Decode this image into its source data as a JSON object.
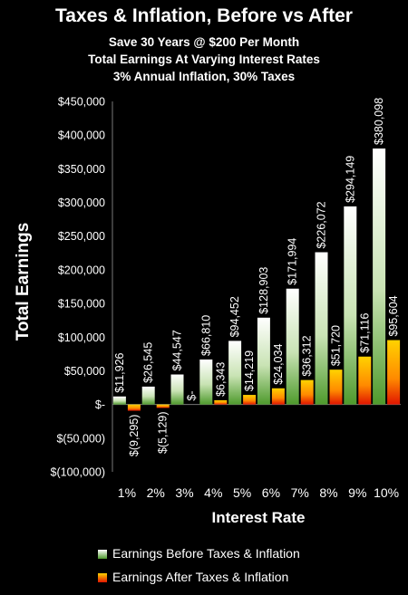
{
  "header": {
    "title": "Taxes & Inflation, Before vs After",
    "subtitle_lines": [
      "Save 30 Years @ $200 Per Month",
      "Total Earnings At Varying Interest Rates",
      "3% Annual Inflation, 30% Taxes"
    ]
  },
  "chart_data": {
    "type": "bar",
    "title": "Taxes & Inflation, Before vs After",
    "xlabel": "Interest Rate",
    "ylabel": "Total Earnings",
    "categories": [
      "1%",
      "2%",
      "3%",
      "4%",
      "5%",
      "6%",
      "7%",
      "8%",
      "9%",
      "10%"
    ],
    "ylim": [
      -100000,
      450000
    ],
    "yticks": [
      450000,
      400000,
      350000,
      300000,
      250000,
      200000,
      150000,
      100000,
      50000,
      0,
      -50000,
      -100000
    ],
    "ytick_labels": [
      "$450,000",
      "$400,000",
      "$350,000",
      "$300,000",
      "$250,000",
      "$200,000",
      "$150,000",
      "$100,000",
      "$50,000",
      "$-",
      "$(50,000)",
      "$(100,000)"
    ],
    "series": [
      {
        "name": "Earnings Before Taxes & Inflation",
        "values": [
          11926,
          26545,
          44547,
          66810,
          94452,
          128903,
          171994,
          226072,
          294149,
          380098
        ],
        "labels": [
          "$11,926",
          "$26,545",
          "$44,547",
          "$66,810",
          "$94,452",
          "$128,903",
          "$171,994",
          "$226,072",
          "$294,149",
          "$380,098"
        ],
        "color": "#7cbf5a"
      },
      {
        "name": "Earnings After Taxes & Inflation",
        "values": [
          -9295,
          -5129,
          0,
          6343,
          14219,
          24034,
          36312,
          51720,
          71116,
          95604
        ],
        "labels": [
          "$(9,295)",
          "$(5,129)",
          "$-",
          "$6,343",
          "$14,219",
          "$24,034",
          "$36,312",
          "$51,720",
          "$71,116",
          "$95,604"
        ],
        "color": "#f5a000"
      }
    ],
    "legend_position": "bottom",
    "grid": false
  },
  "legend": {
    "items": [
      {
        "label": "Earnings Before Taxes & Inflation",
        "color": "#7cbf5a"
      },
      {
        "label": "Earnings After Taxes & Inflation",
        "color": "#f5a000"
      }
    ]
  }
}
